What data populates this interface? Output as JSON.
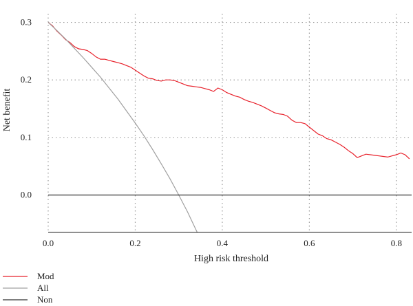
{
  "chart_data": {
    "type": "line",
    "xlabel": "High risk threshold",
    "ylabel": "Net benefit",
    "xlim": [
      0.0,
      0.835
    ],
    "ylim": [
      -0.065,
      0.315
    ],
    "x_ticks": [
      0.0,
      0.2,
      0.4,
      0.6,
      0.8
    ],
    "x_tick_labels": [
      "0.0",
      "0.2",
      "0.4",
      "0.6",
      "0.8"
    ],
    "y_ticks": [
      0.0,
      0.1,
      0.2,
      0.3
    ],
    "y_tick_labels": [
      "0.0",
      "0.1",
      "0.2",
      "0.3"
    ],
    "grid": "dotted",
    "legend": "bottom-left",
    "series": [
      {
        "name": "Mod",
        "color": "#e8202a",
        "x": [
          0.0,
          0.01,
          0.02,
          0.03,
          0.04,
          0.05,
          0.06,
          0.07,
          0.08,
          0.09,
          0.1,
          0.11,
          0.12,
          0.13,
          0.14,
          0.15,
          0.16,
          0.17,
          0.18,
          0.19,
          0.2,
          0.21,
          0.22,
          0.23,
          0.24,
          0.25,
          0.26,
          0.27,
          0.28,
          0.29,
          0.3,
          0.31,
          0.32,
          0.33,
          0.34,
          0.35,
          0.36,
          0.37,
          0.38,
          0.39,
          0.4,
          0.41,
          0.42,
          0.43,
          0.44,
          0.45,
          0.46,
          0.47,
          0.48,
          0.49,
          0.5,
          0.51,
          0.52,
          0.53,
          0.54,
          0.55,
          0.56,
          0.57,
          0.58,
          0.59,
          0.6,
          0.61,
          0.62,
          0.63,
          0.64,
          0.65,
          0.66,
          0.67,
          0.68,
          0.69,
          0.7,
          0.71,
          0.72,
          0.73,
          0.74,
          0.75,
          0.76,
          0.77,
          0.78,
          0.79,
          0.8,
          0.81,
          0.82,
          0.83
        ],
        "y": [
          0.3,
          0.294,
          0.285,
          0.278,
          0.27,
          0.265,
          0.258,
          0.254,
          0.253,
          0.251,
          0.246,
          0.24,
          0.236,
          0.236,
          0.234,
          0.232,
          0.23,
          0.228,
          0.225,
          0.222,
          0.217,
          0.212,
          0.207,
          0.203,
          0.202,
          0.199,
          0.198,
          0.2,
          0.2,
          0.199,
          0.196,
          0.193,
          0.19,
          0.189,
          0.188,
          0.187,
          0.185,
          0.183,
          0.18,
          0.186,
          0.183,
          0.178,
          0.175,
          0.172,
          0.17,
          0.166,
          0.163,
          0.161,
          0.158,
          0.155,
          0.151,
          0.147,
          0.143,
          0.141,
          0.14,
          0.137,
          0.13,
          0.126,
          0.126,
          0.124,
          0.118,
          0.112,
          0.106,
          0.103,
          0.098,
          0.096,
          0.092,
          0.088,
          0.083,
          0.077,
          0.072,
          0.065,
          0.068,
          0.071,
          0.07,
          0.069,
          0.068,
          0.067,
          0.066,
          0.068,
          0.07,
          0.073,
          0.07,
          0.063
        ]
      },
      {
        "name": "All",
        "color": "#a0a0a0",
        "x": [
          0.0,
          0.02,
          0.04,
          0.06,
          0.08,
          0.1,
          0.12,
          0.14,
          0.16,
          0.18,
          0.2,
          0.22,
          0.24,
          0.26,
          0.28,
          0.3,
          0.32,
          0.34,
          0.345
        ],
        "y": [
          0.3,
          0.286,
          0.271,
          0.255,
          0.239,
          0.222,
          0.205,
          0.186,
          0.167,
          0.146,
          0.125,
          0.103,
          0.079,
          0.054,
          0.028,
          0.0,
          -0.029,
          -0.061,
          -0.069
        ]
      },
      {
        "name": "Non",
        "color": "#333333",
        "x": [
          0.0,
          0.835
        ],
        "y": [
          0.0,
          0.0
        ]
      }
    ]
  }
}
